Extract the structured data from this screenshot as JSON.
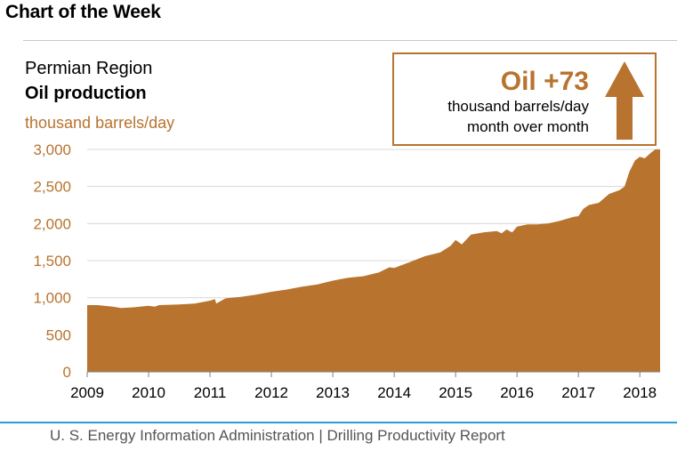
{
  "header": {
    "title": "Chart of the Week"
  },
  "callout": {
    "headline": "Oil +73",
    "line1": "thousand barrels/day",
    "line2": "month over month",
    "arrow_icon": "up-arrow-icon"
  },
  "footer": {
    "text": "U. S. Energy Information Administration  |  Drilling Productivity Report"
  },
  "colors": {
    "fill": "#b8732e",
    "accent_line": "#2a9fd0",
    "grid": "#d9d9d9"
  },
  "chart_data": {
    "type": "area",
    "title": "Permian Region",
    "subtitle": "Oil production",
    "ylabel": "thousand barrels/day",
    "xlabel": "",
    "ylim": [
      0,
      3000
    ],
    "yticks": [
      0,
      500,
      1000,
      1500,
      2000,
      2500,
      3000
    ],
    "ytick_labels": [
      "0",
      "500",
      "1,000",
      "1,500",
      "2,000",
      "2,500",
      "3,000"
    ],
    "xlim": [
      2009.0,
      2018.33
    ],
    "xticks": [
      2009,
      2010,
      2011,
      2012,
      2013,
      2014,
      2015,
      2016,
      2017,
      2018
    ],
    "xtick_labels": [
      "2009",
      "2010",
      "2011",
      "2012",
      "2013",
      "2014",
      "2015",
      "2016",
      "2017",
      "2018"
    ],
    "grid": true,
    "series": [
      {
        "values": [
          [
            2009.0,
            900
          ],
          [
            2009.17,
            900
          ],
          [
            2009.42,
            880
          ],
          [
            2009.55,
            860
          ],
          [
            2009.75,
            870
          ],
          [
            2010.0,
            890
          ],
          [
            2010.1,
            880
          ],
          [
            2010.17,
            900
          ],
          [
            2010.5,
            910
          ],
          [
            2010.75,
            920
          ],
          [
            2011.0,
            960
          ],
          [
            2011.08,
            980
          ],
          [
            2011.1,
            920
          ],
          [
            2011.25,
            990
          ],
          [
            2011.5,
            1010
          ],
          [
            2011.75,
            1040
          ],
          [
            2012.0,
            1080
          ],
          [
            2012.25,
            1110
          ],
          [
            2012.5,
            1150
          ],
          [
            2012.75,
            1180
          ],
          [
            2013.0,
            1230
          ],
          [
            2013.25,
            1270
          ],
          [
            2013.5,
            1290
          ],
          [
            2013.75,
            1340
          ],
          [
            2013.92,
            1410
          ],
          [
            2014.0,
            1400
          ],
          [
            2014.25,
            1480
          ],
          [
            2014.5,
            1560
          ],
          [
            2014.75,
            1610
          ],
          [
            2014.92,
            1700
          ],
          [
            2015.0,
            1780
          ],
          [
            2015.1,
            1720
          ],
          [
            2015.25,
            1850
          ],
          [
            2015.45,
            1880
          ],
          [
            2015.67,
            1900
          ],
          [
            2015.75,
            1870
          ],
          [
            2015.83,
            1920
          ],
          [
            2015.92,
            1880
          ],
          [
            2016.0,
            1960
          ],
          [
            2016.17,
            1990
          ],
          [
            2016.33,
            1990
          ],
          [
            2016.5,
            2000
          ],
          [
            2016.67,
            2030
          ],
          [
            2016.75,
            2050
          ],
          [
            2016.92,
            2090
          ],
          [
            2017.0,
            2100
          ],
          [
            2017.08,
            2200
          ],
          [
            2017.17,
            2250
          ],
          [
            2017.33,
            2280
          ],
          [
            2017.5,
            2400
          ],
          [
            2017.67,
            2450
          ],
          [
            2017.75,
            2500
          ],
          [
            2017.83,
            2700
          ],
          [
            2017.92,
            2850
          ],
          [
            2018.0,
            2900
          ],
          [
            2018.08,
            2880
          ],
          [
            2018.17,
            2950
          ],
          [
            2018.25,
            3020
          ],
          [
            2018.33,
            3100
          ]
        ]
      }
    ]
  }
}
